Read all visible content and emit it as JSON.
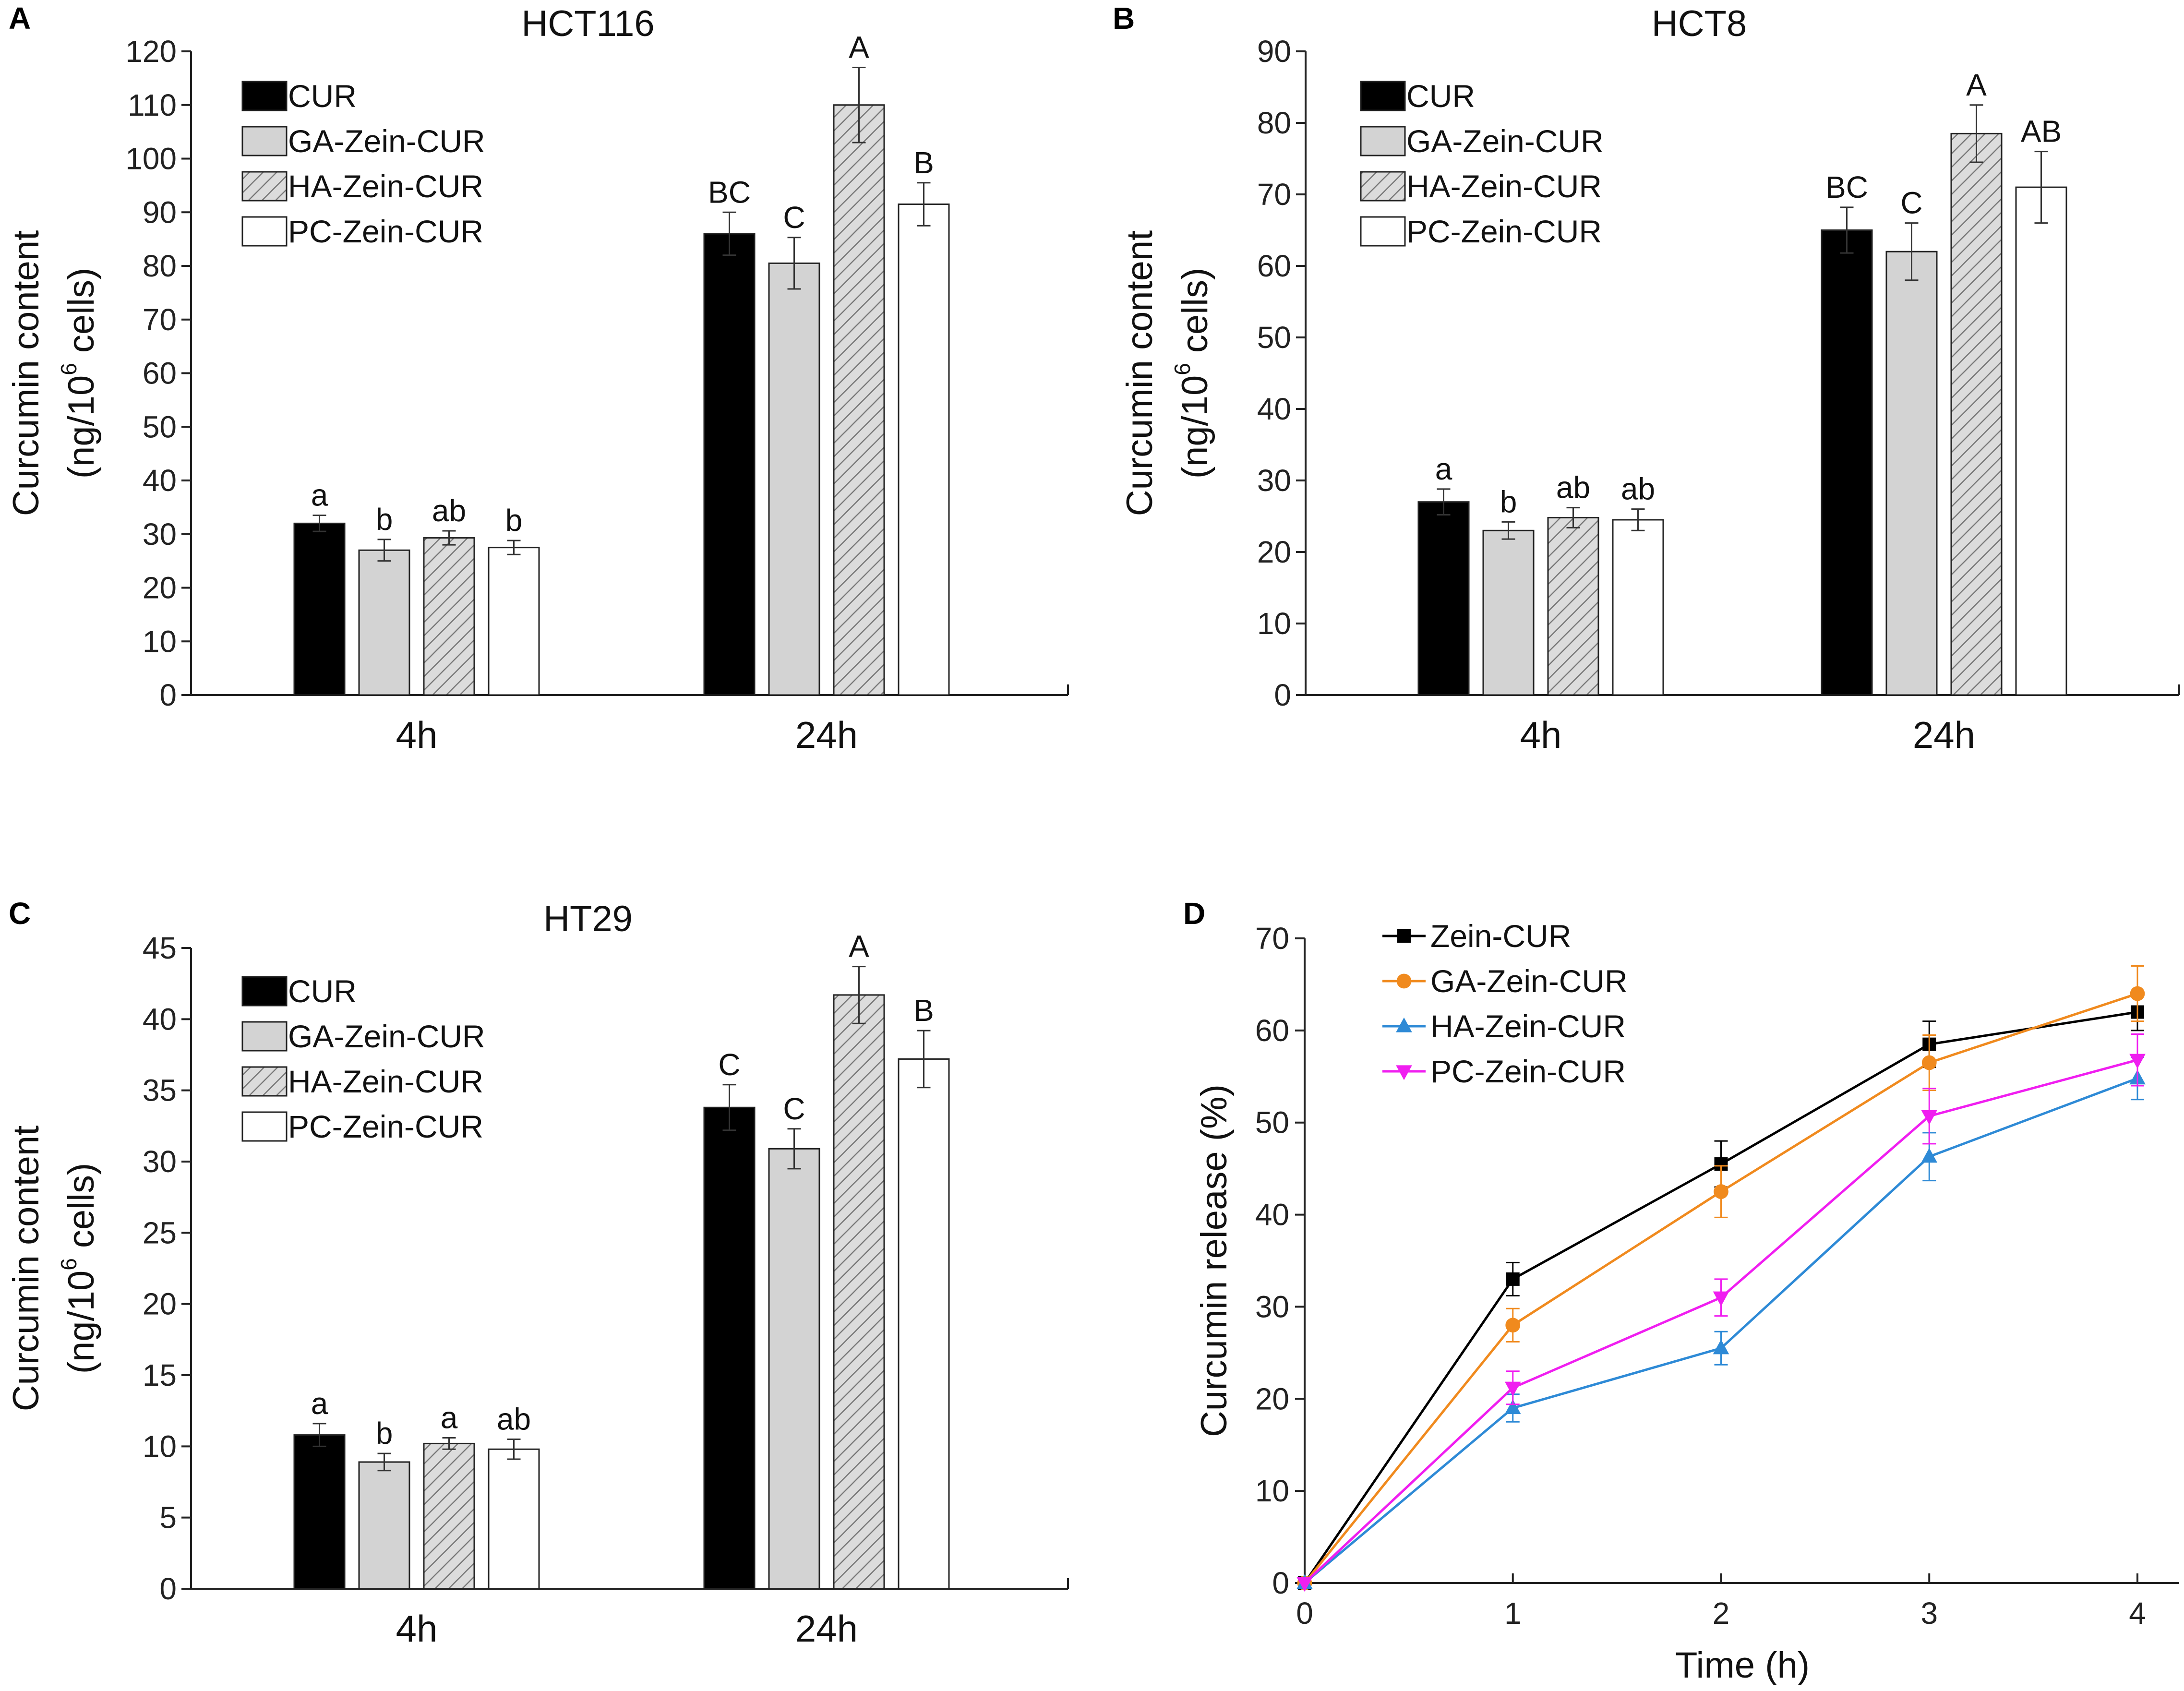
{
  "chart_data": [
    {
      "panel": "A",
      "type": "bar",
      "title": "HCT116",
      "ylabel": "Curcumin content",
      "ylabel2_pre": "(ng/10",
      "ylabel2_sup": "6",
      "ylabel2_post": " cells)",
      "ylim": [
        0,
        120
      ],
      "yticks": [
        0,
        10,
        20,
        30,
        40,
        50,
        60,
        70,
        80,
        90,
        100,
        110,
        120
      ],
      "categories": [
        "4h",
        "24h"
      ],
      "series": [
        {
          "name": "CUR",
          "values": [
            32,
            86
          ],
          "errors": [
            1.5,
            4.0
          ],
          "letters": [
            "a",
            "BC"
          ]
        },
        {
          "name": "GA-Zein-CUR",
          "values": [
            27,
            80.5
          ],
          "errors": [
            2.0,
            4.8
          ],
          "letters": [
            "b",
            "C"
          ]
        },
        {
          "name": "HA-Zein-CUR",
          "values": [
            29.3,
            110
          ],
          "errors": [
            1.3,
            7.0
          ],
          "letters": [
            "ab",
            "A"
          ]
        },
        {
          "name": "PC-Zein-CUR",
          "values": [
            27.5,
            91.5
          ],
          "errors": [
            1.3,
            4.0
          ],
          "letters": [
            "b",
            "B"
          ]
        }
      ]
    },
    {
      "panel": "B",
      "type": "bar",
      "title": "HCT8",
      "ylabel": "Curcumin content",
      "ylabel2_pre": "(ng/10",
      "ylabel2_sup": "6",
      "ylabel2_post": " cells)",
      "ylim": [
        0,
        90
      ],
      "yticks": [
        0,
        10,
        20,
        30,
        40,
        50,
        60,
        70,
        80,
        90
      ],
      "categories": [
        "4h",
        "24h"
      ],
      "series": [
        {
          "name": "CUR",
          "values": [
            27,
            65
          ],
          "errors": [
            1.8,
            3.2
          ],
          "letters": [
            "a",
            "BC"
          ]
        },
        {
          "name": "GA-Zein-CUR",
          "values": [
            23,
            62
          ],
          "errors": [
            1.2,
            4.0
          ],
          "letters": [
            "b",
            "C"
          ]
        },
        {
          "name": "HA-Zein-CUR",
          "values": [
            24.8,
            78.5
          ],
          "errors": [
            1.4,
            4.0
          ],
          "letters": [
            "ab",
            "A"
          ]
        },
        {
          "name": "PC-Zein-CUR",
          "values": [
            24.5,
            71
          ],
          "errors": [
            1.5,
            5.0
          ],
          "letters": [
            "ab",
            "AB"
          ]
        }
      ]
    },
    {
      "panel": "C",
      "type": "bar",
      "title": "HT29",
      "ylabel": "Curcumin content",
      "ylabel2_pre": "(ng/10",
      "ylabel2_sup": "6",
      "ylabel2_post": " cells)",
      "ylim": [
        0,
        45
      ],
      "yticks": [
        0,
        5,
        10,
        15,
        20,
        25,
        30,
        35,
        40,
        45
      ],
      "categories": [
        "4h",
        "24h"
      ],
      "series": [
        {
          "name": "CUR",
          "values": [
            10.8,
            33.8
          ],
          "errors": [
            0.8,
            1.6
          ],
          "letters": [
            "a",
            "C"
          ]
        },
        {
          "name": "GA-Zein-CUR",
          "values": [
            8.9,
            30.9
          ],
          "errors": [
            0.6,
            1.4
          ],
          "letters": [
            "b",
            "C"
          ]
        },
        {
          "name": "HA-Zein-CUR",
          "values": [
            10.2,
            41.7
          ],
          "errors": [
            0.4,
            2.0
          ],
          "letters": [
            "a",
            "A"
          ]
        },
        {
          "name": "PC-Zein-CUR",
          "values": [
            9.8,
            37.2
          ],
          "errors": [
            0.7,
            2.0
          ],
          "letters": [
            "ab",
            "B"
          ]
        }
      ]
    },
    {
      "panel": "D",
      "type": "line",
      "title": "",
      "xlabel": "Time (h)",
      "ylabel": "Curcumin release (%)",
      "xlim": [
        0,
        4
      ],
      "ylim": [
        0,
        70
      ],
      "xticks": [
        0,
        1,
        2,
        3,
        4
      ],
      "yticks": [
        0,
        10,
        20,
        30,
        40,
        50,
        60,
        70
      ],
      "x": [
        0,
        1,
        2,
        3,
        4
      ],
      "series": [
        {
          "name": "Zein-CUR",
          "color": "#000000",
          "marker": "square",
          "values": [
            0,
            33,
            45.5,
            58.5,
            62
          ],
          "errors": [
            0,
            1.8,
            2.5,
            2.5,
            2.0
          ]
        },
        {
          "name": "GA-Zein-CUR",
          "color": "#f08a1e",
          "marker": "circle",
          "values": [
            0,
            28,
            42.5,
            56.5,
            64
          ],
          "errors": [
            0,
            1.8,
            2.8,
            3.0,
            3.0
          ]
        },
        {
          "name": "HA-Zein-CUR",
          "color": "#2e8ad6",
          "marker": "triangle-up",
          "values": [
            0,
            19,
            25.5,
            46.3,
            54.8
          ],
          "errors": [
            0,
            1.5,
            1.8,
            2.6,
            2.3
          ]
        },
        {
          "name": "PC-Zein-CUR",
          "color": "#f01ef0",
          "marker": "triangle-down",
          "values": [
            0,
            21.2,
            31,
            50.7,
            56.8
          ],
          "errors": [
            0,
            1.8,
            2.0,
            3.0,
            2.8
          ]
        }
      ]
    }
  ]
}
